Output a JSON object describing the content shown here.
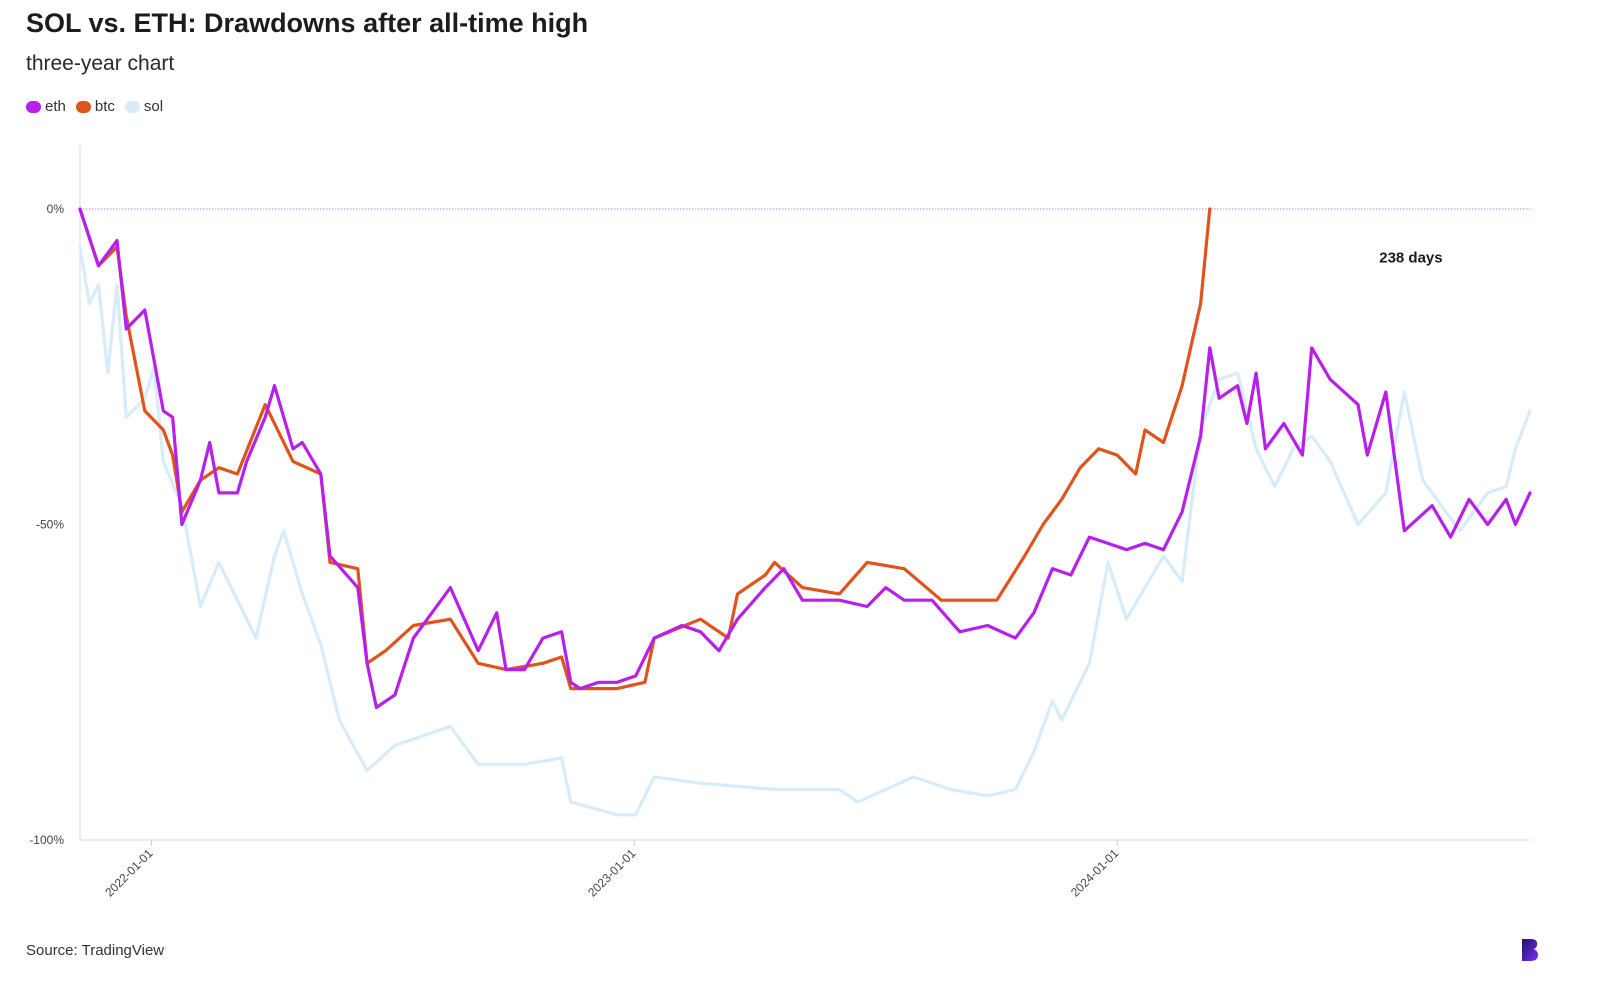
{
  "title": "SOL vs. ETH: Drawdowns after all-time high",
  "subtitle": "three-year chart",
  "source": "Source: TradingView",
  "legend": [
    {
      "name": "eth",
      "color": "#b620e8"
    },
    {
      "name": "btc",
      "color": "#e0531d"
    },
    {
      "name": "sol",
      "color": "#d6ecfa"
    }
  ],
  "chart_data": {
    "type": "line",
    "y_unit": "%",
    "ylim": [
      -100,
      0
    ],
    "y_ticks": [
      {
        "value": 0,
        "label": "0%"
      },
      {
        "value": -50,
        "label": "-50%"
      },
      {
        "value": -100,
        "label": "-100%"
      }
    ],
    "xlim": [
      "2021-11-08",
      "2024-11-08"
    ],
    "x_ticks": [
      "2022-01-01",
      "2023-01-01",
      "2024-01-01"
    ],
    "reference_line": {
      "y": 0,
      "color": "#c77de0",
      "style": "dotted"
    },
    "annotation": {
      "text": "238 days",
      "x": "2024-08-10",
      "y": -8.5
    },
    "grid": false,
    "legend_position": "top-left",
    "series": [
      {
        "name": "eth",
        "color": "#b620e8",
        "points": [
          [
            "2021-11-08",
            0
          ],
          [
            "2021-11-22",
            -9
          ],
          [
            "2021-12-06",
            -5
          ],
          [
            "2021-12-13",
            -19
          ],
          [
            "2021-12-27",
            -16
          ],
          [
            "2022-01-03",
            -24
          ],
          [
            "2022-01-10",
            -32
          ],
          [
            "2022-01-17",
            -33
          ],
          [
            "2022-01-24",
            -50
          ],
          [
            "2022-02-07",
            -43
          ],
          [
            "2022-02-14",
            -37
          ],
          [
            "2022-02-21",
            -45
          ],
          [
            "2022-03-07",
            -45
          ],
          [
            "2022-03-14",
            -40
          ],
          [
            "2022-03-28",
            -33
          ],
          [
            "2022-04-04",
            -28
          ],
          [
            "2022-04-18",
            -38
          ],
          [
            "2022-04-25",
            -37
          ],
          [
            "2022-05-09",
            -42
          ],
          [
            "2022-05-16",
            -55
          ],
          [
            "2022-06-06",
            -60
          ],
          [
            "2022-06-13",
            -72
          ],
          [
            "2022-06-20",
            -79
          ],
          [
            "2022-07-04",
            -77
          ],
          [
            "2022-07-18",
            -68
          ],
          [
            "2022-08-01",
            -64
          ],
          [
            "2022-08-15",
            -60
          ],
          [
            "2022-09-05",
            -70
          ],
          [
            "2022-09-19",
            -64
          ],
          [
            "2022-09-26",
            -73
          ],
          [
            "2022-10-10",
            -73
          ],
          [
            "2022-10-24",
            -68
          ],
          [
            "2022-11-07",
            -67
          ],
          [
            "2022-11-14",
            -75
          ],
          [
            "2022-11-21",
            -76
          ],
          [
            "2022-12-05",
            -75
          ],
          [
            "2022-12-19",
            -75
          ],
          [
            "2023-01-02",
            -74
          ],
          [
            "2023-01-16",
            -68
          ],
          [
            "2023-02-06",
            -66
          ],
          [
            "2023-02-20",
            -67
          ],
          [
            "2023-03-06",
            -70
          ],
          [
            "2023-03-20",
            -65
          ],
          [
            "2023-04-10",
            -60
          ],
          [
            "2023-04-24",
            -57
          ],
          [
            "2023-05-08",
            -62
          ],
          [
            "2023-06-05",
            -62
          ],
          [
            "2023-06-26",
            -63
          ],
          [
            "2023-07-10",
            -60
          ],
          [
            "2023-07-24",
            -62
          ],
          [
            "2023-08-14",
            -62
          ],
          [
            "2023-09-04",
            -67
          ],
          [
            "2023-09-25",
            -66
          ],
          [
            "2023-10-16",
            -68
          ],
          [
            "2023-10-30",
            -64
          ],
          [
            "2023-11-13",
            -57
          ],
          [
            "2023-11-27",
            -58
          ],
          [
            "2023-12-11",
            -52
          ],
          [
            "2023-12-25",
            -53
          ],
          [
            "2024-01-08",
            -54
          ],
          [
            "2024-01-22",
            -53
          ],
          [
            "2024-02-05",
            -54
          ],
          [
            "2024-02-19",
            -48
          ],
          [
            "2024-03-04",
            -36
          ],
          [
            "2024-03-11",
            -22
          ],
          [
            "2024-03-18",
            -30
          ],
          [
            "2024-04-01",
            -28
          ],
          [
            "2024-04-08",
            -34
          ],
          [
            "2024-04-15",
            -26
          ],
          [
            "2024-04-22",
            -38
          ],
          [
            "2024-05-06",
            -34
          ],
          [
            "2024-05-20",
            -39
          ],
          [
            "2024-05-27",
            -22
          ],
          [
            "2024-06-10",
            -27
          ],
          [
            "2024-07-01",
            -31
          ],
          [
            "2024-07-08",
            -39
          ],
          [
            "2024-07-22",
            -29
          ],
          [
            "2024-08-05",
            -51
          ],
          [
            "2024-08-26",
            -47
          ],
          [
            "2024-09-09",
            -52
          ],
          [
            "2024-09-23",
            -46
          ],
          [
            "2024-10-07",
            -50
          ],
          [
            "2024-10-21",
            -46
          ],
          [
            "2024-10-28",
            -50
          ],
          [
            "2024-11-08",
            -45
          ]
        ]
      },
      {
        "name": "btc",
        "color": "#e0531d",
        "points": [
          [
            "2021-11-08",
            0
          ],
          [
            "2021-11-22",
            -9
          ],
          [
            "2021-12-06",
            -6
          ],
          [
            "2021-12-13",
            -17
          ],
          [
            "2021-12-27",
            -32
          ],
          [
            "2022-01-10",
            -35
          ],
          [
            "2022-01-17",
            -39
          ],
          [
            "2022-01-24",
            -48
          ],
          [
            "2022-02-07",
            -43
          ],
          [
            "2022-02-21",
            -41
          ],
          [
            "2022-03-07",
            -42
          ],
          [
            "2022-03-28",
            -31
          ],
          [
            "2022-04-18",
            -40
          ],
          [
            "2022-05-09",
            -42
          ],
          [
            "2022-05-16",
            -56
          ],
          [
            "2022-06-06",
            -57
          ],
          [
            "2022-06-13",
            -72
          ],
          [
            "2022-06-27",
            -70
          ],
          [
            "2022-07-18",
            -66
          ],
          [
            "2022-08-15",
            -65
          ],
          [
            "2022-09-05",
            -72
          ],
          [
            "2022-09-26",
            -73
          ],
          [
            "2022-10-24",
            -72
          ],
          [
            "2022-11-07",
            -71
          ],
          [
            "2022-11-14",
            -76
          ],
          [
            "2022-12-19",
            -76
          ],
          [
            "2023-01-09",
            -75
          ],
          [
            "2023-01-16",
            -68
          ],
          [
            "2023-02-20",
            -65
          ],
          [
            "2023-03-13",
            -68
          ],
          [
            "2023-03-20",
            -61
          ],
          [
            "2023-04-10",
            -58
          ],
          [
            "2023-04-17",
            -56
          ],
          [
            "2023-05-08",
            -60
          ],
          [
            "2023-06-05",
            -61
          ],
          [
            "2023-06-26",
            -56
          ],
          [
            "2023-07-24",
            -57
          ],
          [
            "2023-08-21",
            -62
          ],
          [
            "2023-09-11",
            -62
          ],
          [
            "2023-10-02",
            -62
          ],
          [
            "2023-10-23",
            -55
          ],
          [
            "2023-11-06",
            -50
          ],
          [
            "2023-11-20",
            -46
          ],
          [
            "2023-12-04",
            -41
          ],
          [
            "2023-12-18",
            -38
          ],
          [
            "2024-01-01",
            -39
          ],
          [
            "2024-01-15",
            -42
          ],
          [
            "2024-01-22",
            -35
          ],
          [
            "2024-02-05",
            -37
          ],
          [
            "2024-02-19",
            -28
          ],
          [
            "2024-03-04",
            -15
          ],
          [
            "2024-03-11",
            0
          ]
        ]
      },
      {
        "name": "sol",
        "color": "#d6ecfa",
        "points": [
          [
            "2021-11-08",
            -6
          ],
          [
            "2021-11-15",
            -15
          ],
          [
            "2021-11-22",
            -12
          ],
          [
            "2021-11-29",
            -26
          ],
          [
            "2021-12-06",
            -12
          ],
          [
            "2021-12-13",
            -33
          ],
          [
            "2021-12-27",
            -30
          ],
          [
            "2022-01-03",
            -25
          ],
          [
            "2022-01-10",
            -40
          ],
          [
            "2022-01-24",
            -47
          ],
          [
            "2022-02-07",
            -63
          ],
          [
            "2022-02-21",
            -56
          ],
          [
            "2022-03-07",
            -62
          ],
          [
            "2022-03-21",
            -68
          ],
          [
            "2022-04-04",
            -55
          ],
          [
            "2022-04-11",
            -51
          ],
          [
            "2022-04-25",
            -61
          ],
          [
            "2022-05-09",
            -69
          ],
          [
            "2022-05-23",
            -81
          ],
          [
            "2022-06-13",
            -89
          ],
          [
            "2022-07-04",
            -85
          ],
          [
            "2022-08-15",
            -82
          ],
          [
            "2022-09-05",
            -88
          ],
          [
            "2022-10-10",
            -88
          ],
          [
            "2022-11-07",
            -87
          ],
          [
            "2022-11-14",
            -94
          ],
          [
            "2022-12-19",
            -96
          ],
          [
            "2023-01-02",
            -96
          ],
          [
            "2023-01-16",
            -90
          ],
          [
            "2023-02-20",
            -91
          ],
          [
            "2023-04-17",
            -92
          ],
          [
            "2023-06-05",
            -92
          ],
          [
            "2023-06-19",
            -94
          ],
          [
            "2023-07-10",
            -92
          ],
          [
            "2023-07-31",
            -90
          ],
          [
            "2023-08-28",
            -92
          ],
          [
            "2023-09-25",
            -93
          ],
          [
            "2023-10-16",
            -92
          ],
          [
            "2023-10-30",
            -86
          ],
          [
            "2023-11-13",
            -78
          ],
          [
            "2023-11-20",
            -81
          ],
          [
            "2023-12-11",
            -72
          ],
          [
            "2023-12-25",
            -56
          ],
          [
            "2024-01-08",
            -65
          ],
          [
            "2024-01-22",
            -60
          ],
          [
            "2024-02-05",
            -55
          ],
          [
            "2024-02-19",
            -59
          ],
          [
            "2024-03-04",
            -35
          ],
          [
            "2024-03-18",
            -27
          ],
          [
            "2024-04-01",
            -26
          ],
          [
            "2024-04-15",
            -38
          ],
          [
            "2024-04-29",
            -44
          ],
          [
            "2024-05-13",
            -38
          ],
          [
            "2024-05-27",
            -36
          ],
          [
            "2024-06-10",
            -40
          ],
          [
            "2024-07-01",
            -50
          ],
          [
            "2024-07-22",
            -45
          ],
          [
            "2024-08-05",
            -29
          ],
          [
            "2024-08-19",
            -43
          ],
          [
            "2024-09-02",
            -47
          ],
          [
            "2024-09-16",
            -51
          ],
          [
            "2024-10-07",
            -45
          ],
          [
            "2024-10-21",
            -44
          ],
          [
            "2024-10-28",
            -38
          ],
          [
            "2024-11-08",
            -32
          ]
        ]
      }
    ]
  }
}
